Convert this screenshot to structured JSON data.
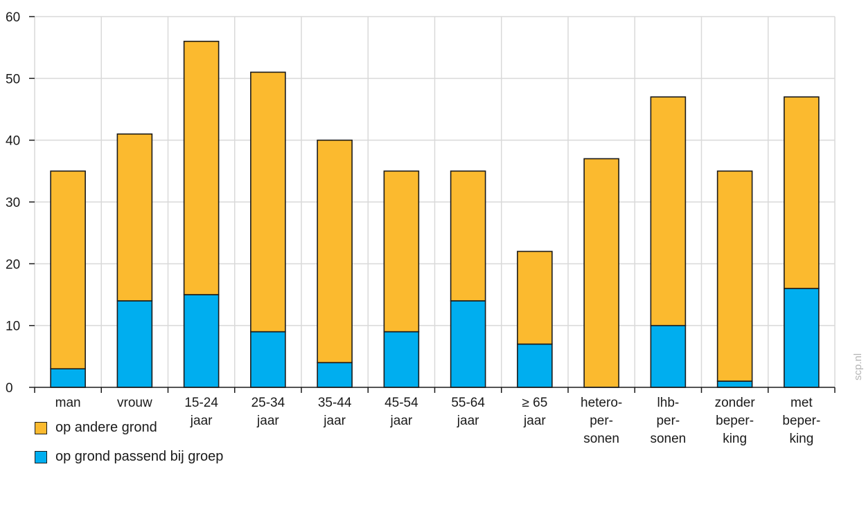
{
  "chart_data": {
    "type": "bar",
    "stacked": true,
    "categories": [
      [
        "man"
      ],
      [
        "vrouw"
      ],
      [
        "15-24",
        "jaar"
      ],
      [
        "25-34",
        "jaar"
      ],
      [
        "35-44",
        "jaar"
      ],
      [
        "45-54",
        "jaar"
      ],
      [
        "55-64",
        "jaar"
      ],
      [
        "≥ 65",
        "jaar"
      ],
      [
        "hetero-",
        "per-",
        "sonen"
      ],
      [
        "lhb-",
        "per-",
        "sonen"
      ],
      [
        "zonder",
        "beper-",
        "king"
      ],
      [
        "met",
        "beper-",
        "king"
      ]
    ],
    "series": [
      {
        "name": "op grond passend bij groep",
        "color": "#00aeef",
        "values": [
          3,
          14,
          15,
          9,
          4,
          9,
          14,
          7,
          0,
          10,
          1,
          16
        ]
      },
      {
        "name": "op andere grond",
        "color": "#fbba2f",
        "values": [
          32,
          27,
          41,
          42,
          36,
          26,
          21,
          15,
          37,
          37,
          34,
          31
        ]
      }
    ],
    "ylim": [
      0,
      60
    ],
    "yticks": [
      0,
      10,
      20,
      30,
      40,
      50,
      60
    ],
    "grid": true,
    "legend_placement": "bottom-left",
    "legend_order": [
      "op andere grond",
      "op grond passend bij groep"
    ]
  },
  "watermark": "scp.nl"
}
